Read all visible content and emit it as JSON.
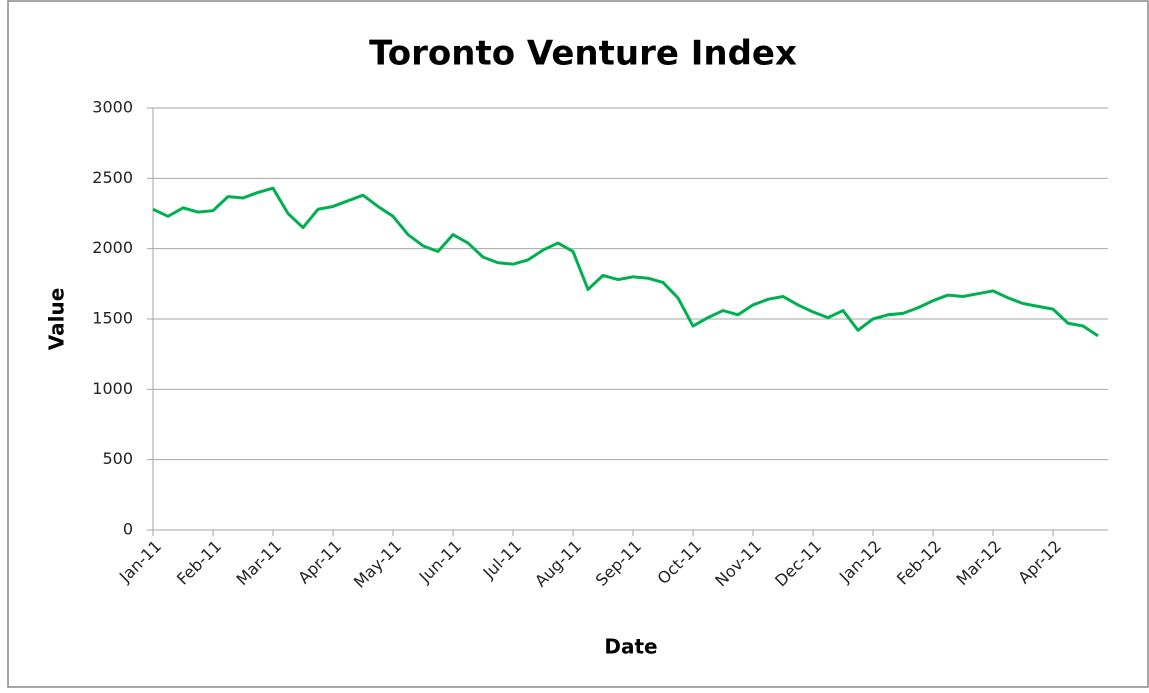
{
  "chart_data": {
    "type": "line",
    "title": "Toronto Venture Index",
    "x_label": "Date",
    "y_label": "Value",
    "categories": [
      "Jan-11",
      null,
      null,
      null,
      "Feb-11",
      null,
      null,
      null,
      "Mar-11",
      null,
      null,
      null,
      "Apr-11",
      null,
      null,
      null,
      "May-11",
      null,
      null,
      null,
      "Jun-11",
      null,
      null,
      null,
      "Jul-11",
      null,
      null,
      null,
      "Aug-11",
      null,
      null,
      null,
      "Sep-11",
      null,
      null,
      null,
      "Oct-11",
      null,
      null,
      null,
      "Nov-11",
      null,
      null,
      null,
      "Dec-11",
      null,
      null,
      null,
      "Jan-12",
      null,
      null,
      null,
      "Feb-12",
      null,
      null,
      null,
      "Mar-12",
      null,
      null,
      null,
      "Apr-12",
      null,
      null,
      null
    ],
    "series": [
      {
        "name": "Value",
        "color": "#00b050",
        "values": [
          2280,
          2230,
          2290,
          2260,
          2270,
          2370,
          2360,
          2400,
          2430,
          2250,
          2150,
          2280,
          2300,
          2340,
          2380,
          2300,
          2230,
          2100,
          2020,
          1980,
          2100,
          2040,
          1940,
          1900,
          1890,
          1920,
          1990,
          2040,
          1980,
          1710,
          1810,
          1780,
          1800,
          1790,
          1760,
          1650,
          1450,
          1510,
          1560,
          1530,
          1600,
          1640,
          1660,
          1600,
          1550,
          1510,
          1560,
          1420,
          1500,
          1530,
          1540,
          1580,
          1630,
          1670,
          1660,
          1680,
          1700,
          1650,
          1610,
          1590,
          1570,
          1470,
          1450,
          1380
        ]
      }
    ],
    "ylim": [
      0,
      3000
    ],
    "yticks": [
      0,
      500,
      1000,
      1500,
      2000,
      2500,
      3000
    ],
    "grid": true
  }
}
